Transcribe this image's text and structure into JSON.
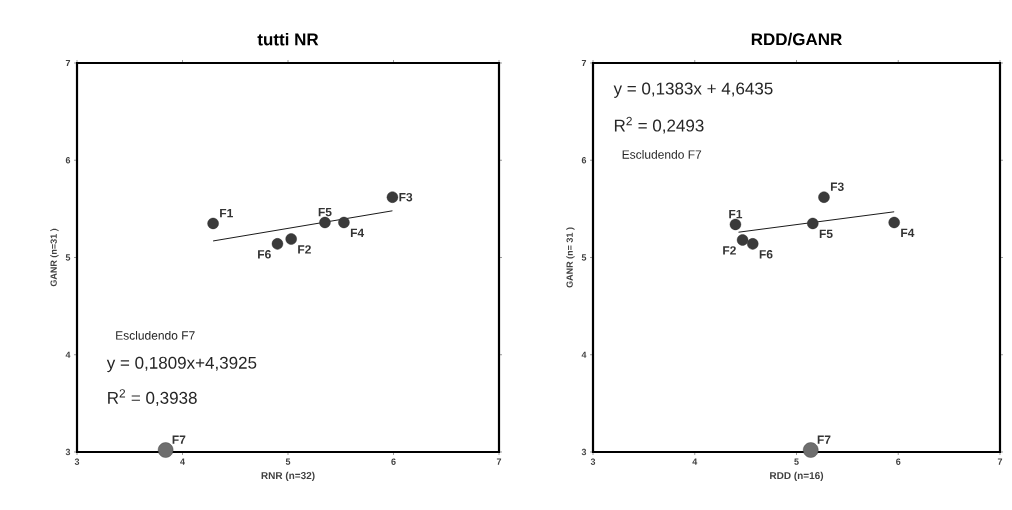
{
  "chart_data": [
    {
      "type": "scatter",
      "title": "tutti NR",
      "xlabel": "RNR (n=32)",
      "ylabel": "GANR (n=31 )",
      "xlim": [
        3,
        7
      ],
      "ylim": [
        3,
        7
      ],
      "xticks": [
        3,
        4,
        5,
        6,
        7
      ],
      "yticks": [
        3,
        4,
        5,
        6,
        7
      ],
      "grid": false,
      "marker": "circle",
      "series": [
        {
          "color": "#3a3a3a",
          "x": [
            4.29,
            5.03,
            5.99,
            5.53,
            5.35,
            4.9
          ],
          "values": [
            5.35,
            5.19,
            5.62,
            5.36,
            5.36,
            5.14
          ]
        },
        {
          "color": "#6e6e6e",
          "x": [
            3.84
          ],
          "values": [
            3.02
          ]
        },
        {
          "type": "line",
          "color": "#000000",
          "marker": "none",
          "x": [
            4.29,
            5.99
          ],
          "values": [
            5.17,
            5.48
          ]
        }
      ],
      "annotations": [
        "Escludendo F7",
        "y = 0,1809x+4,3925",
        "R$^{2}$ = 0,3938",
        {
          "text": "F1",
          "x": 4.29,
          "y": 5.35
        },
        {
          "text": "F2",
          "x": 5.03,
          "y": 5.19
        },
        {
          "text": "F3",
          "x": 5.99,
          "y": 5.62
        },
        {
          "text": "F4",
          "x": 5.53,
          "y": 5.36
        },
        {
          "text": "F5",
          "x": 5.35,
          "y": 5.36
        },
        {
          "text": "F6",
          "x": 4.9,
          "y": 5.14
        },
        {
          "text": "F7",
          "x": 3.84,
          "y": 3.02
        }
      ]
    },
    {
      "type": "scatter",
      "title": "RDD/GANR",
      "xlabel": "RDD (n=16)",
      "ylabel": "GANR (n= 31 )",
      "xlim": [
        3,
        7
      ],
      "ylim": [
        3,
        7
      ],
      "xticks": [
        3,
        4,
        5,
        6,
        7
      ],
      "yticks": [
        3,
        4,
        5,
        6,
        7
      ],
      "grid": false,
      "marker": "circle",
      "series": [
        {
          "color": "#3a3a3a",
          "x": [
            4.4,
            4.47,
            5.27,
            5.96,
            5.16,
            4.57
          ],
          "values": [
            5.34,
            5.18,
            5.62,
            5.36,
            5.35,
            5.14
          ]
        },
        {
          "color": "#6e6e6e",
          "x": [
            5.14
          ],
          "values": [
            3.02
          ]
        },
        {
          "type": "line",
          "color": "#000000",
          "marker": "none",
          "x": [
            4.43,
            5.96
          ],
          "values": [
            5.26,
            5.47
          ]
        }
      ],
      "annotations": [
        "y = 0,1383x + 4,6435",
        "R$^{2}$ = 0,2493",
        "Escludendo F7",
        {
          "text": "F1",
          "x": 4.4,
          "y": 5.34
        },
        {
          "text": "F2",
          "x": 4.47,
          "y": 5.18
        },
        {
          "text": "F3",
          "x": 5.27,
          "y": 5.62
        },
        {
          "text": "F4",
          "x": 5.96,
          "y": 5.36
        },
        {
          "text": "F5",
          "x": 5.16,
          "y": 5.35
        },
        {
          "text": "F6",
          "x": 4.57,
          "y": 5.14
        },
        {
          "text": "F7",
          "x": 5.14,
          "y": 3.02
        }
      ]
    }
  ]
}
